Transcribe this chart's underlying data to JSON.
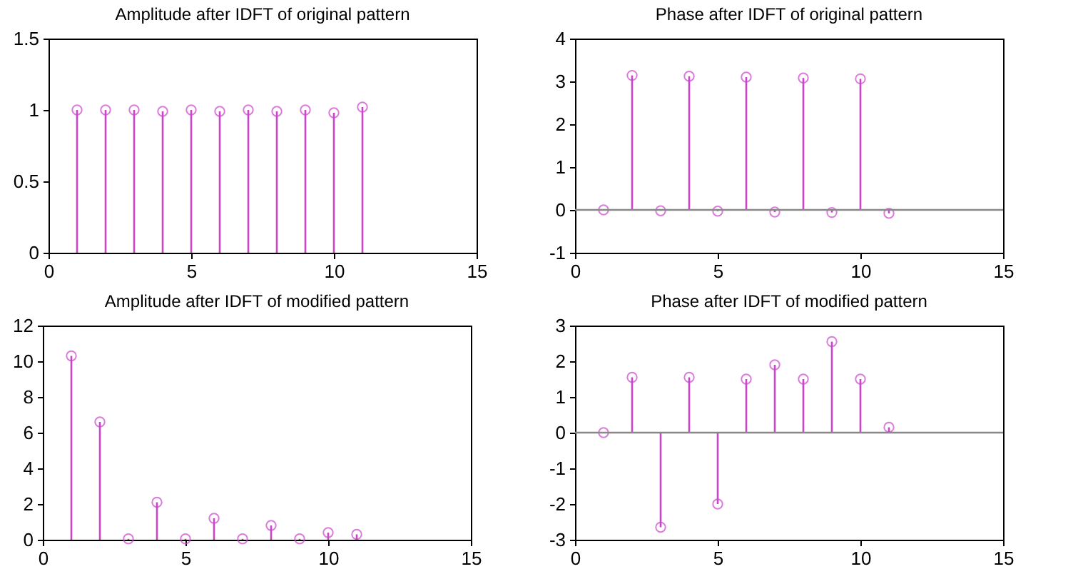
{
  "chart_data": [
    {
      "type": "lollipop",
      "title": "Amplitude after  IDFT  of original pattern",
      "x": [
        1,
        2,
        3,
        4,
        5,
        6,
        7,
        8,
        9,
        10,
        11
      ],
      "values": [
        1,
        1,
        1,
        0.99,
        1,
        0.99,
        1,
        0.99,
        1,
        0.98,
        1.02
      ],
      "color": "#cc44cc",
      "marker": "circle",
      "xlim": [
        0,
        15
      ],
      "xticks": [
        0,
        5,
        10,
        15
      ],
      "ylim": [
        0,
        1.5
      ],
      "yticks": [
        0,
        0.5,
        1,
        1.5
      ]
    },
    {
      "type": "lollipop",
      "title": "Phase after  IDFT  of original pattern",
      "x": [
        1,
        2,
        3,
        4,
        5,
        6,
        7,
        8,
        9,
        10,
        11
      ],
      "values": [
        0,
        3.14,
        -0.02,
        3.12,
        -0.03,
        3.1,
        -0.05,
        3.08,
        -0.06,
        3.06,
        -0.08
      ],
      "color": "#cc44cc",
      "marker": "circle",
      "xlim": [
        0,
        15
      ],
      "xticks": [
        0,
        5,
        10,
        15
      ],
      "ylim": [
        -1,
        4
      ],
      "yticks": [
        -1,
        0,
        1,
        2,
        3,
        4
      ],
      "ref_lines": [
        {
          "axis": "y",
          "value": 0,
          "color": "#888888"
        }
      ]
    },
    {
      "type": "lollipop",
      "title": "Amplitude after  IDFT  of modified pattern",
      "x": [
        1,
        2,
        3,
        4,
        5,
        6,
        7,
        8,
        9,
        10,
        11
      ],
      "values": [
        10.3,
        6.6,
        0.05,
        2.1,
        0.05,
        1.2,
        0.05,
        0.8,
        0.05,
        0.4,
        0.3
      ],
      "color": "#cc44cc",
      "marker": "circle",
      "xlim": [
        0,
        15
      ],
      "xticks": [
        0,
        5,
        10,
        15
      ],
      "ylim": [
        0,
        12
      ],
      "yticks": [
        0,
        2,
        4,
        6,
        8,
        10,
        12
      ]
    },
    {
      "type": "lollipop",
      "title": "Phase after  IDFT  of modified pattern",
      "x": [
        1,
        2,
        3,
        4,
        5,
        6,
        7,
        8,
        9,
        10,
        11
      ],
      "values": [
        0,
        1.55,
        -2.65,
        1.55,
        -2,
        1.5,
        1.9,
        1.5,
        2.55,
        1.5,
        0.15
      ],
      "color": "#cc44cc",
      "marker": "circle",
      "xlim": [
        0,
        15
      ],
      "xticks": [
        0,
        5,
        10,
        15
      ],
      "ylim": [
        -3,
        3
      ],
      "yticks": [
        -3,
        -2,
        -1,
        0,
        1,
        2,
        3
      ],
      "ref_lines": [
        {
          "axis": "y",
          "value": 0,
          "color": "#888888"
        }
      ]
    }
  ]
}
